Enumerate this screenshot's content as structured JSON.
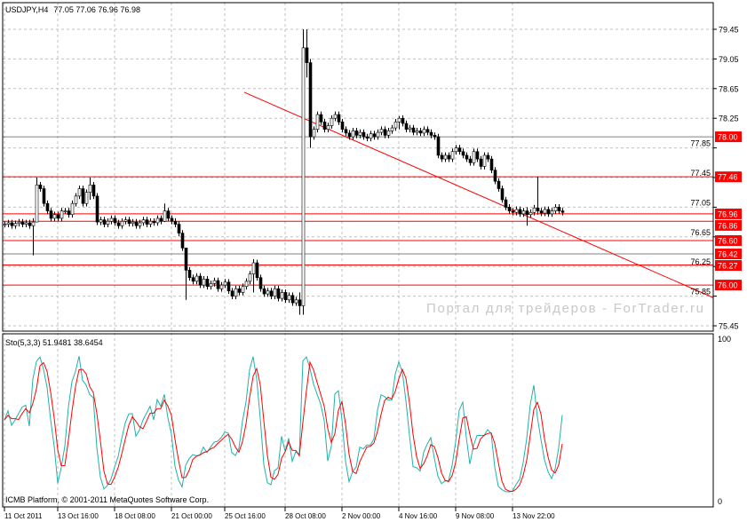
{
  "header": {
    "title": "USDJPY,H4",
    "ohlc": "77.05 77.06 76.96 76.98"
  },
  "indicator": {
    "label": "Sto(5,3,3) 51.9481 38.6454",
    "axis_max": "100",
    "axis_min": "0"
  },
  "copyright": "ICMB Platform, © 2001-2011 MetaQuotes Software Corp.",
  "watermark": "Портал для трейдеров - ForTrader.ru",
  "colors": {
    "up_candle": "#ffffff",
    "down_candle": "#000000",
    "level_line": "#ff0000",
    "label_bg": "#ff0000",
    "stoch_main": "#20b2aa",
    "stoch_signal": "#ff0000",
    "grid": "#c0c0c0"
  },
  "chart_data": {
    "type": "candlestick",
    "symbol": "USDJPY",
    "timeframe": "H4",
    "ylim": [
      75.45,
      79.45
    ],
    "price_ticks": [
      "79.45",
      "79.05",
      "78.65",
      "78.25",
      "77.85",
      "77.45",
      "77.05",
      "76.65",
      "76.25",
      "75.85",
      "75.45"
    ],
    "time_labels": [
      {
        "bar": 0,
        "text": "11 Oct 2011"
      },
      {
        "bar": 15,
        "text": "13 Oct 16:00"
      },
      {
        "bar": 31,
        "text": "18 Oct 08:00"
      },
      {
        "bar": 47,
        "text": "21 Oct 00:00"
      },
      {
        "bar": 62,
        "text": "25 Oct 16:00"
      },
      {
        "bar": 79,
        "text": "28 Oct 08:00"
      },
      {
        "bar": 95,
        "text": "2 Nov 00:00"
      },
      {
        "bar": 111,
        "text": "4 Nov 16:00"
      },
      {
        "bar": 127,
        "text": "9 Nov 08:00"
      },
      {
        "bar": 143,
        "text": "13 Nov 22:00"
      }
    ],
    "closes": [
      76.82,
      76.84,
      76.8,
      76.83,
      76.85,
      76.82,
      76.84,
      76.8,
      76.85,
      77.35,
      77.3,
      77.1,
      77.0,
      76.9,
      76.95,
      76.9,
      77.0,
      77.0,
      76.95,
      77.1,
      77.2,
      77.3,
      77.1,
      77.25,
      77.35,
      77.2,
      76.85,
      76.88,
      76.82,
      76.86,
      76.9,
      76.84,
      76.8,
      76.86,
      76.88,
      76.83,
      76.85,
      76.8,
      76.84,
      76.88,
      76.82,
      76.86,
      76.84,
      76.9,
      76.86,
      77.0,
      76.9,
      76.86,
      76.82,
      76.7,
      76.5,
      76.2,
      76.1,
      76.05,
      76.12,
      76.0,
      76.08,
      75.98,
      76.02,
      76.06,
      75.95,
      76.0,
      76.04,
      75.92,
      75.85,
      75.95,
      75.9,
      75.98,
      76.05,
      76.15,
      76.3,
      76.1,
      75.95,
      75.88,
      75.92,
      75.85,
      75.95,
      75.82,
      75.9,
      75.8,
      75.86,
      75.76,
      75.8,
      75.72,
      79.2,
      79.0,
      78.0,
      78.1,
      78.3,
      78.2,
      78.1,
      78.15,
      78.25,
      78.3,
      78.2,
      78.1,
      78.05,
      78.0,
      78.08,
      78.02,
      78.06,
      78.0,
      77.98,
      78.04,
      78.0,
      78.06,
      78.1,
      78.02,
      78.08,
      78.12,
      78.2,
      78.25,
      78.18,
      78.1,
      78.12,
      78.06,
      78.08,
      78.05,
      78.1,
      78.06,
      78.02,
      78.0,
      77.75,
      77.7,
      77.75,
      77.7,
      77.8,
      77.85,
      77.8,
      77.75,
      77.7,
      77.65,
      77.8,
      77.7,
      77.6,
      77.75,
      77.7,
      77.55,
      77.4,
      77.3,
      77.15,
      77.05,
      77.0,
      76.98,
      77.02,
      76.96,
      77.0,
      76.95,
      76.98,
      77.04,
      77.0,
      76.97,
      77.02,
      76.96,
      77.0,
      77.05,
      77.0,
      76.98
    ],
    "wicks": {
      "8": [
        76.9,
        76.4
      ],
      "9": [
        77.45,
        76.85
      ],
      "24": [
        77.45,
        77.15
      ],
      "45": [
        77.1,
        76.85
      ],
      "51": [
        76.5,
        75.8
      ],
      "70": [
        76.35,
        75.9
      ],
      "83": [
        75.9,
        75.6
      ],
      "84": [
        79.45,
        75.6
      ],
      "85": [
        79.45,
        78.8
      ],
      "86": [
        79.05,
        77.85
      ],
      "111": [
        78.28,
        78.1
      ],
      "147": [
        77.05,
        76.8
      ],
      "150": [
        77.46,
        76.95
      ]
    },
    "levels": [
      {
        "price": 78.0,
        "label": "78.00",
        "style": "gray"
      },
      {
        "price": 77.46,
        "label": "77.46",
        "style": "red"
      },
      {
        "price": 76.96,
        "label": "76.96",
        "style": "red"
      },
      {
        "price": 76.86,
        "label": "76.86",
        "style": "red"
      },
      {
        "price": 76.6,
        "label": "76.60",
        "style": "red"
      },
      {
        "price": 76.42,
        "label": "76.42",
        "style": "gray"
      },
      {
        "price": 76.27,
        "label": "76.27",
        "style": "red"
      },
      {
        "price": 76.0,
        "label": "76.00",
        "style": "red"
      }
    ],
    "trendline": {
      "from": {
        "bar": 67.5,
        "price": 78.6
      },
      "to": {
        "bar": 199.5,
        "price": 75.83
      }
    },
    "stochastic": {
      "k_period": 5,
      "d_period": 3,
      "slowing": 3,
      "ylim": [
        0,
        100
      ]
    }
  }
}
